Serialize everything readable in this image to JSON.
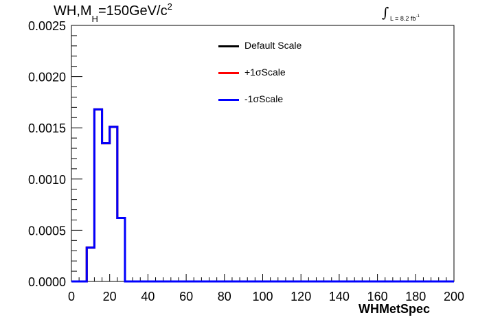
{
  "title": {
    "main": "WH,M",
    "sub": "H",
    "rest": "=150GeV/c",
    "sup": "2"
  },
  "lumi": {
    "int": "∫",
    "text": "L = 8.2 fb",
    "sup": "-1"
  },
  "chart_data": {
    "type": "line",
    "title": "WH,MH=150GeV/c2",
    "xlabel": "WHMetSpec",
    "ylabel": "",
    "xlim": [
      0,
      200
    ],
    "ylim": [
      0,
      0.0025
    ],
    "xticks": [
      0,
      20,
      40,
      60,
      80,
      100,
      120,
      140,
      160,
      180,
      200
    ],
    "xtick_labels": [
      "0",
      "20",
      "40",
      "60",
      "80",
      "100",
      "120",
      "140",
      "160",
      "180",
      "200"
    ],
    "yticks": [
      0,
      0.0005,
      0.001,
      0.0015,
      0.002,
      0.0025
    ],
    "ytick_labels": [
      "0.0000",
      "0.0005",
      "0.0010",
      "0.0015",
      "0.0020",
      "0.0025"
    ],
    "bin_edges": [
      0,
      4,
      8,
      12,
      16,
      20,
      24,
      28,
      32,
      36,
      40,
      44,
      48,
      52,
      56,
      60,
      64,
      68,
      72,
      76,
      80,
      84,
      88,
      92,
      96,
      100,
      104,
      108,
      112,
      116,
      120,
      124,
      128,
      132,
      136,
      140,
      144,
      148,
      152,
      156,
      160,
      164,
      168,
      172,
      176,
      180,
      184,
      188,
      192,
      196,
      200
    ],
    "series": [
      {
        "name": "Default Scale",
        "color": "#000000",
        "values": [
          0,
          0,
          0.00033,
          0.00168,
          0.00135,
          0.00151,
          0.00062,
          0,
          0,
          0,
          0,
          0,
          0,
          0,
          0,
          0,
          0,
          0,
          0,
          0,
          0,
          0,
          0,
          0,
          0,
          0,
          0,
          0,
          0,
          0,
          0,
          0,
          0,
          0,
          0,
          0,
          0,
          0,
          0,
          0,
          0,
          0,
          0,
          0,
          0,
          0,
          0,
          0,
          0,
          0
        ]
      },
      {
        "name": "+1σScale",
        "color": "#ff0000",
        "values": [
          0,
          0,
          0.00033,
          0.00168,
          0.00135,
          0.00151,
          0.00062,
          0,
          0,
          0,
          0,
          0,
          0,
          0,
          0,
          0,
          0,
          0,
          0,
          0,
          0,
          0,
          0,
          0,
          0,
          0,
          0,
          0,
          0,
          0,
          0,
          0,
          0,
          0,
          0,
          0,
          0,
          0,
          0,
          0,
          0,
          0,
          0,
          0,
          0,
          0,
          0,
          0,
          0,
          0
        ]
      },
      {
        "name": "-1σScale",
        "color": "#0000ff",
        "values": [
          0,
          0,
          0.00033,
          0.00168,
          0.00135,
          0.00151,
          0.00062,
          0,
          0,
          0,
          0,
          0,
          0,
          0,
          0,
          0,
          0,
          0,
          0,
          0,
          0,
          0,
          0,
          0,
          0,
          0,
          0,
          0,
          0,
          0,
          0,
          0,
          0,
          0,
          0,
          0,
          0,
          0,
          0,
          0,
          0,
          0,
          0,
          0,
          0,
          0,
          0,
          0,
          0,
          0
        ]
      }
    ],
    "legend_position": "top-center",
    "grid": false
  }
}
